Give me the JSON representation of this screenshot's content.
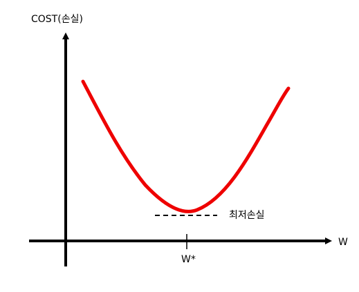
{
  "diagram": {
    "y_axis_label": "COST(손실)",
    "x_axis_label": "W",
    "min_tick_label": "W*",
    "min_loss_label": "최저손실"
  },
  "colors": {
    "curve": "#ee0000",
    "axes": "#000000",
    "background": "#ffffff"
  }
}
